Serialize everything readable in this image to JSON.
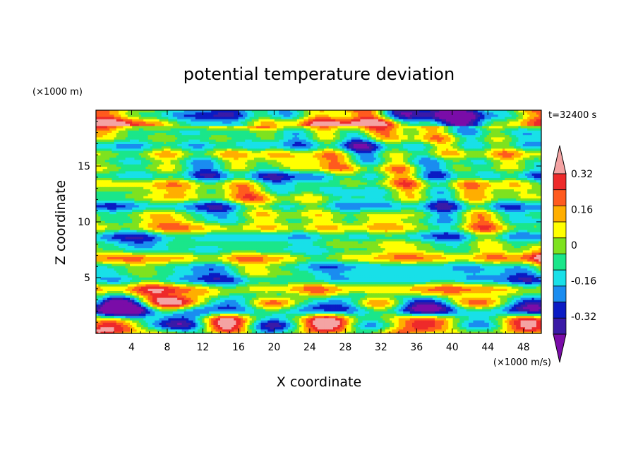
{
  "chart_data": {
    "type": "heatmap",
    "title": "potential temperature deviation",
    "xlabel": "X coordinate",
    "ylabel": "Z coordinate",
    "x_unit": "(×1000 m/s)",
    "y_unit": "(×1000 m)",
    "time_label": "t=32400 s",
    "xlim": [
      0,
      50
    ],
    "ylim": [
      0,
      20
    ],
    "x_ticks": [
      4,
      8,
      12,
      16,
      20,
      24,
      28,
      32,
      36,
      40,
      44,
      48
    ],
    "y_ticks": [
      5,
      10,
      15
    ],
    "colorbar": {
      "tick_labels": [
        "0.32",
        "0.16",
        "0",
        "-0.16",
        "-0.32"
      ],
      "tick_values": [
        0.32,
        0.16,
        0,
        -0.16,
        -0.32
      ],
      "levels": [
        -0.4,
        -0.32,
        -0.24,
        -0.16,
        -0.08,
        0,
        0.08,
        0.16,
        0.24,
        0.32,
        0.4
      ],
      "colors": [
        "#7a0ca8",
        "#3a1aa6",
        "#0b1bc4",
        "#1a8cf0",
        "#18e0e8",
        "#1ae68a",
        "#7ee21f",
        "#ffff00",
        "#ffae00",
        "#ff5a1e",
        "#ee2a2a",
        "#f4a3a3"
      ],
      "extend": "both"
    },
    "grid": false
  }
}
